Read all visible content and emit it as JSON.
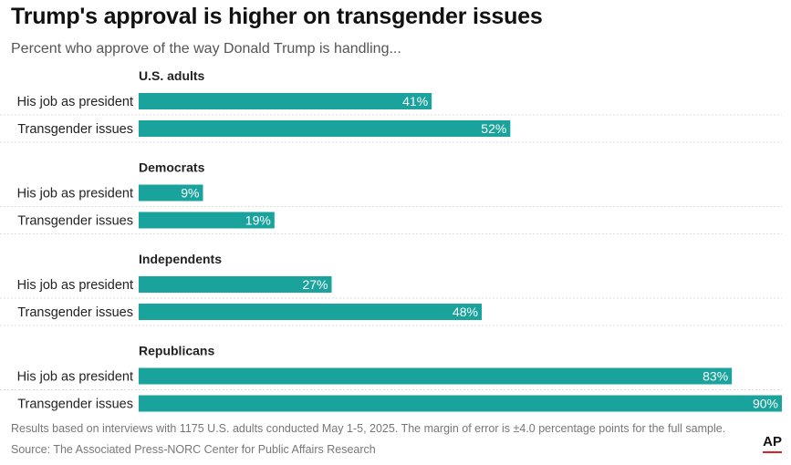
{
  "title": "Trump's approval is higher on transgender issues",
  "subtitle": "Percent who approve of the way Donald Trump is handling...",
  "note": "Results based on interviews with 1175 U.S. adults conducted May 1-5, 2025. The margin of error is ±4.0 percentage points for the full sample.",
  "source": "Source: The Associated Press-NORC Center for Public Affairs Research",
  "logo": "AP",
  "colors": {
    "bar": "#1aa39d",
    "accent": "#e02020"
  },
  "chart_data": {
    "type": "bar",
    "orientation": "horizontal",
    "value_suffix": "%",
    "xlim": [
      0,
      90
    ],
    "groups": [
      {
        "name": "U.S. adults",
        "items": [
          {
            "label": "His job as president",
            "value": 41
          },
          {
            "label": "Transgender issues",
            "value": 52
          }
        ]
      },
      {
        "name": "Democrats",
        "items": [
          {
            "label": "His job as president",
            "value": 9
          },
          {
            "label": "Transgender issues",
            "value": 19
          }
        ]
      },
      {
        "name": "Independents",
        "items": [
          {
            "label": "His job as president",
            "value": 27
          },
          {
            "label": "Transgender issues",
            "value": 48
          }
        ]
      },
      {
        "name": "Republicans",
        "items": [
          {
            "label": "His job as president",
            "value": 83
          },
          {
            "label": "Transgender issues",
            "value": 90
          }
        ]
      }
    ]
  }
}
